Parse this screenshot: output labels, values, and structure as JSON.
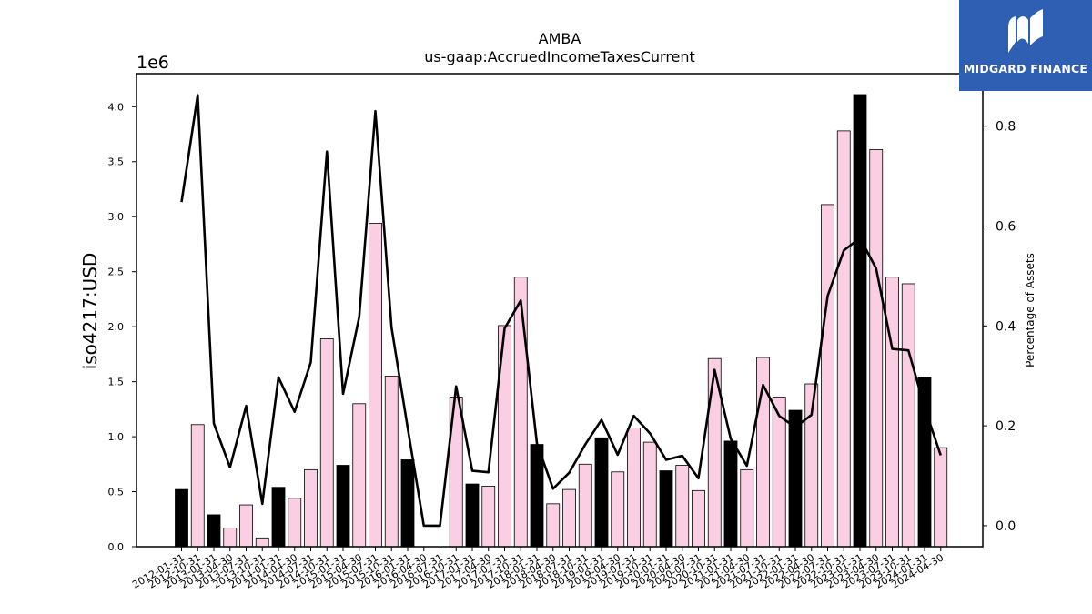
{
  "chart_data": {
    "type": "bar",
    "title": "AMBA",
    "subtitle": "us-gaap:AccruedIncomeTaxesCurrent",
    "ylabel": "iso4217:USD",
    "y_scale_label": "1e6",
    "y2label": "Percentage of Assets",
    "ylim": [
      0,
      4.3
    ],
    "y2lim": [
      -0.042,
      0.905
    ],
    "yticks": [
      "0.0",
      "0.5",
      "1.0",
      "1.5",
      "2.0",
      "2.5",
      "3.0",
      "3.5",
      "4.0"
    ],
    "y2ticks": [
      "0.0",
      "0.2",
      "0.4",
      "0.6",
      "0.8"
    ],
    "categories": [
      "2012-01-31",
      "2012-10-31",
      "2013-01-31",
      "2013-04-30",
      "2013-07-31",
      "2013-10-31",
      "2014-01-31",
      "2014-04-30",
      "2014-07-31",
      "2014-10-31",
      "2015-01-31",
      "2015-04-30",
      "2015-07-31",
      "2015-10-31",
      "2016-01-31",
      "2016-04-30",
      "2016-07-31",
      "2016-10-31",
      "2017-01-31",
      "2017-04-30",
      "2017-07-31",
      "2017-10-31",
      "2018-01-31",
      "2018-04-30",
      "2018-07-31",
      "2018-10-31",
      "2019-01-31",
      "2019-04-30",
      "2019-07-31",
      "2019-10-31",
      "2020-01-31",
      "2020-04-30",
      "2020-07-31",
      "2020-10-31",
      "2021-01-31",
      "2021-04-30",
      "2021-07-31",
      "2021-10-31",
      "2022-01-31",
      "2022-04-30",
      "2022-07-31",
      "2022-10-31",
      "2023-01-31",
      "2023-04-30",
      "2023-07-31",
      "2023-10-31",
      "2024-01-31",
      "2024-04-30"
    ],
    "fiscal_year_end": [
      true,
      false,
      true,
      false,
      false,
      false,
      true,
      false,
      false,
      false,
      true,
      false,
      false,
      false,
      true,
      false,
      false,
      false,
      true,
      false,
      false,
      false,
      true,
      false,
      false,
      false,
      true,
      false,
      false,
      false,
      true,
      false,
      false,
      false,
      true,
      false,
      false,
      false,
      true,
      false,
      false,
      false,
      true,
      false,
      false,
      false,
      true,
      false
    ],
    "series": [
      {
        "values": [
          0.52,
          1.11,
          0.29,
          0.17,
          0.38,
          0.08,
          0.54,
          0.44,
          0.7,
          1.89,
          0.74,
          1.3,
          2.94,
          1.55,
          0.79,
          0.0,
          0.0,
          1.36,
          0.57,
          0.55,
          2.01,
          2.45,
          0.93,
          0.39,
          0.52,
          0.75,
          0.99,
          0.68,
          1.08,
          0.95,
          0.69,
          0.74,
          0.51,
          1.71,
          0.96,
          0.7,
          1.72,
          1.36,
          1.24,
          1.48,
          3.11,
          3.78,
          4.11,
          3.61,
          2.45,
          2.39,
          1.54,
          0.9
        ]
      },
      {
        "values": [
          0.648,
          0.862,
          0.205,
          0.117,
          0.24,
          0.044,
          0.297,
          0.228,
          0.327,
          0.749,
          0.264,
          0.418,
          0.83,
          0.397,
          0.196,
          0.0,
          0.0,
          0.279,
          0.11,
          0.107,
          0.395,
          0.451,
          0.165,
          0.074,
          0.106,
          0.163,
          0.212,
          0.142,
          0.22,
          0.185,
          0.132,
          0.14,
          0.095,
          0.312,
          0.174,
          0.12,
          0.282,
          0.22,
          0.197,
          0.222,
          0.46,
          0.551,
          0.576,
          0.515,
          0.354,
          0.351,
          0.237,
          0.141
        ]
      }
    ],
    "colors": {
      "bar_default": "#fbcfe3",
      "bar_fiscal_year_end": "#000000",
      "line": "#000000",
      "logo_bg": "#2f5fb3"
    }
  },
  "logo": {
    "text": "MIDGARD FINANCE",
    "icon": "midgard-logo-icon"
  }
}
